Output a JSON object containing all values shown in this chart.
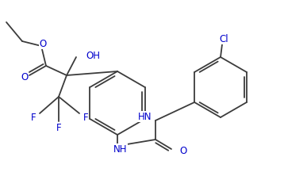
{
  "bg": "#ffffff",
  "lc": "#3c3c3c",
  "tc": "#0000cc",
  "lw": 1.3,
  "figsize": [
    3.58,
    2.22
  ],
  "dpi": 100,
  "xlim": [
    0,
    358
  ],
  "ylim": [
    222,
    0
  ]
}
